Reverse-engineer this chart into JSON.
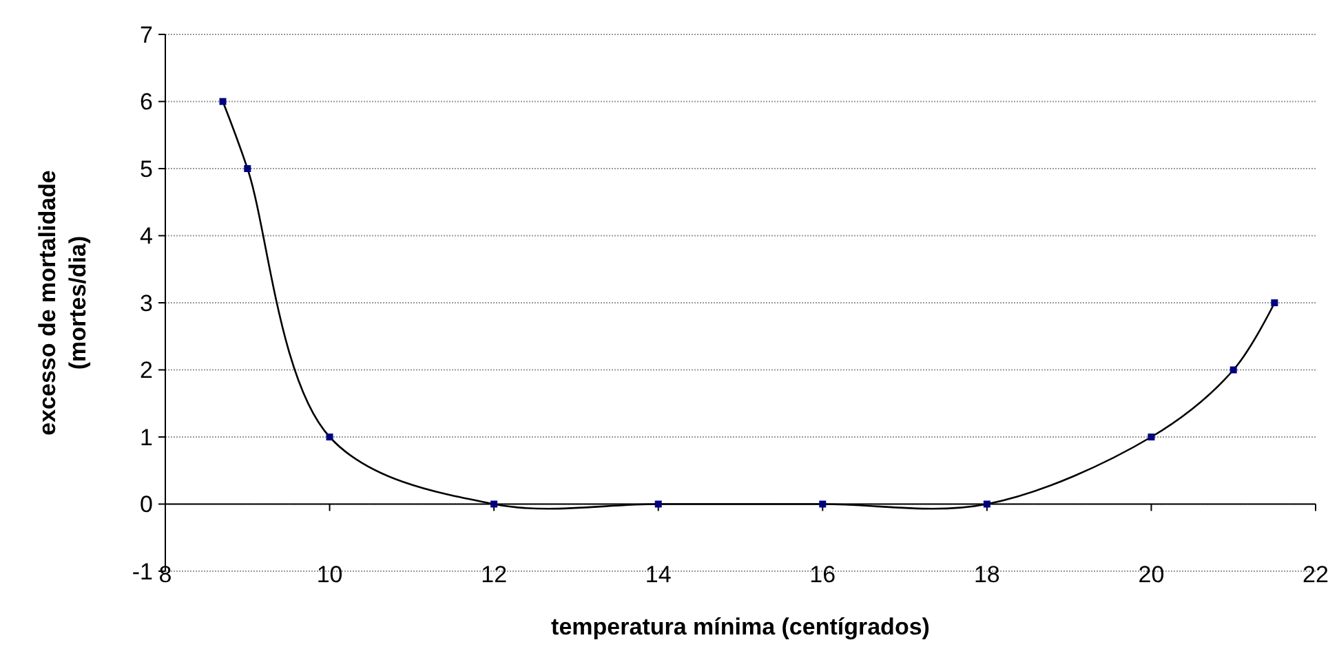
{
  "chart_data": {
    "type": "line",
    "xlabel": "temperatura mínima (centígrados)",
    "ylabel": "excesso de mortalidade\n(mortes/dia)",
    "x": [
      8.7,
      9,
      10,
      12,
      14,
      16,
      18,
      20,
      21,
      21.5
    ],
    "series": [
      {
        "color": "#000080",
        "values": [
          6,
          5,
          1,
          0,
          0,
          0,
          0,
          1,
          2,
          3
        ]
      }
    ],
    "xlim": [
      8,
      22
    ],
    "xticks": [
      8,
      10,
      12,
      14,
      16,
      18,
      20,
      22
    ],
    "ylim": [
      -1,
      7
    ],
    "yticks": [
      -1,
      0,
      1,
      2,
      3,
      4,
      5,
      6,
      7
    ],
    "grid": "y",
    "marker": "square",
    "line_style": "solid"
  }
}
